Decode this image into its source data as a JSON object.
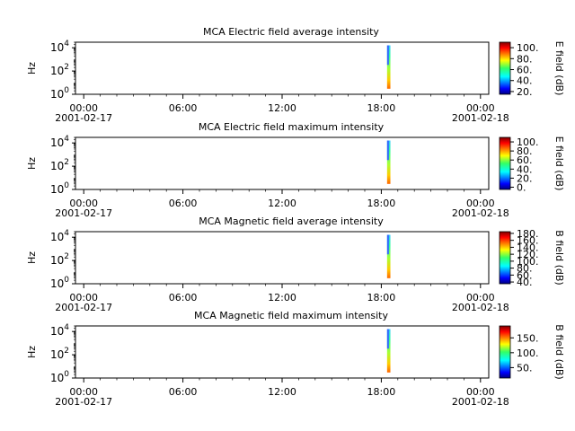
{
  "chart_data": [
    {
      "type": "heatmap",
      "title": "MCA  Electric field average intensity",
      "ylabel": "Hz",
      "colorbar_label": "E field (dB)",
      "colorbar_ticks": [
        "20.",
        "40.",
        "60.",
        "80.",
        "100."
      ],
      "colorbar_range": [
        15,
        110
      ],
      "y_ticks": [
        {
          "base": "10",
          "exp": "0"
        },
        {
          "base": "10",
          "exp": "2"
        },
        {
          "base": "10",
          "exp": "4"
        }
      ],
      "yscale": "log",
      "ylim": [
        1,
        30000
      ],
      "x_ticks": [
        {
          "time": "00:00",
          "date": "2001-02-17"
        },
        {
          "time": "06:00",
          "date": ""
        },
        {
          "time": "12:00",
          "date": ""
        },
        {
          "time": "18:00",
          "date": ""
        },
        {
          "time": "00:00",
          "date": "2001-02-18"
        }
      ],
      "xlim_hours": [
        -0.5,
        24.5
      ],
      "data_span_hours": [
        18.35,
        18.55
      ],
      "freq_range_hz": [
        3,
        16000
      ]
    },
    {
      "type": "heatmap",
      "title": "MCA  Electric field maximum intensity",
      "ylabel": "Hz",
      "colorbar_label": "E field (dB)",
      "colorbar_ticks": [
        "0.",
        "20.",
        "40.",
        "60.",
        "80.",
        "100."
      ],
      "colorbar_range": [
        -5,
        110
      ],
      "y_ticks": [
        {
          "base": "10",
          "exp": "0"
        },
        {
          "base": "10",
          "exp": "2"
        },
        {
          "base": "10",
          "exp": "4"
        }
      ],
      "yscale": "log",
      "ylim": [
        1,
        30000
      ],
      "x_ticks": [
        {
          "time": "00:00",
          "date": "2001-02-17"
        },
        {
          "time": "06:00",
          "date": ""
        },
        {
          "time": "12:00",
          "date": ""
        },
        {
          "time": "18:00",
          "date": ""
        },
        {
          "time": "00:00",
          "date": "2001-02-18"
        }
      ],
      "xlim_hours": [
        -0.5,
        24.5
      ],
      "data_span_hours": [
        18.35,
        18.55
      ],
      "freq_range_hz": [
        3,
        16000
      ]
    },
    {
      "type": "heatmap",
      "title": "MCA  Magnetic field average intensity",
      "ylabel": "Hz",
      "colorbar_label": "B field (dB)",
      "colorbar_ticks": [
        "40.",
        "60.",
        "80.",
        "100.",
        "120.",
        "140.",
        "160.",
        "180."
      ],
      "colorbar_range": [
        35,
        185
      ],
      "y_ticks": [
        {
          "base": "10",
          "exp": "0"
        },
        {
          "base": "10",
          "exp": "2"
        },
        {
          "base": "10",
          "exp": "4"
        }
      ],
      "yscale": "log",
      "ylim": [
        1,
        30000
      ],
      "x_ticks": [
        {
          "time": "00:00",
          "date": "2001-02-17"
        },
        {
          "time": "06:00",
          "date": ""
        },
        {
          "time": "12:00",
          "date": ""
        },
        {
          "time": "18:00",
          "date": ""
        },
        {
          "time": "00:00",
          "date": "2001-02-18"
        }
      ],
      "xlim_hours": [
        -0.5,
        24.5
      ],
      "data_span_hours": [
        18.35,
        18.55
      ],
      "freq_range_hz": [
        3,
        16000
      ]
    },
    {
      "type": "heatmap",
      "title": "MCA  Magnetic field maximum intensity",
      "ylabel": "Hz",
      "colorbar_label": "B field (dB)",
      "colorbar_ticks": [
        "50.",
        "100.",
        "150."
      ],
      "colorbar_range": [
        15,
        190
      ],
      "y_ticks": [
        {
          "base": "10",
          "exp": "0"
        },
        {
          "base": "10",
          "exp": "2"
        },
        {
          "base": "10",
          "exp": "4"
        }
      ],
      "yscale": "log",
      "ylim": [
        1,
        30000
      ],
      "x_ticks": [
        {
          "time": "00:00",
          "date": "2001-02-17"
        },
        {
          "time": "06:00",
          "date": ""
        },
        {
          "time": "12:00",
          "date": ""
        },
        {
          "time": "18:00",
          "date": ""
        },
        {
          "time": "00:00",
          "date": "2001-02-18"
        }
      ],
      "xlim_hours": [
        -0.5,
        24.5
      ],
      "data_span_hours": [
        18.35,
        18.55
      ],
      "freq_range_hz": [
        3,
        16000
      ]
    }
  ]
}
